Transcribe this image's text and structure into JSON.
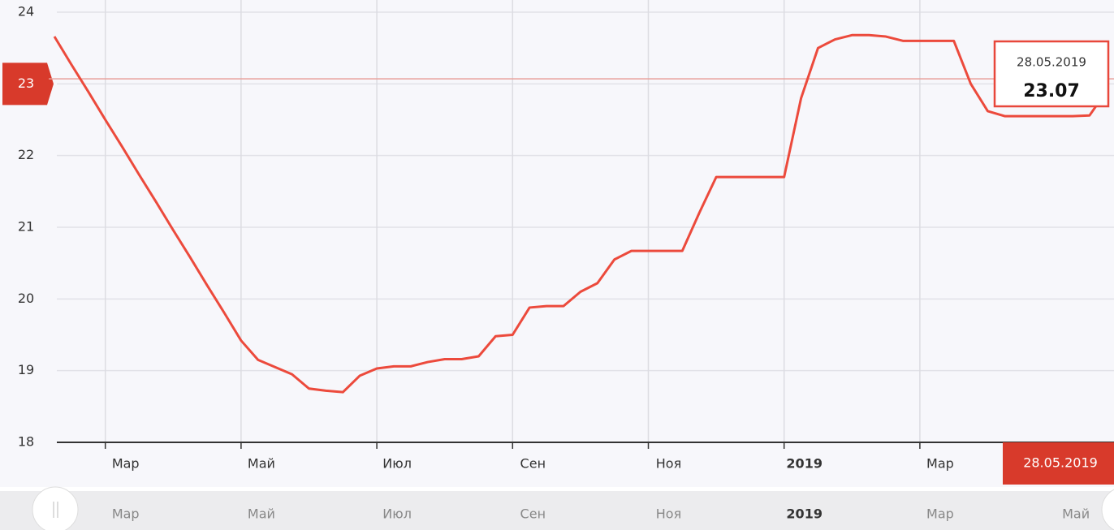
{
  "chart_data": {
    "type": "line",
    "categories": [
      null,
      null,
      null,
      "Мар",
      null,
      null,
      null,
      null,
      null,
      null,
      null,
      "Май",
      null,
      null,
      null,
      null,
      null,
      null,
      null,
      "Июл",
      null,
      null,
      null,
      null,
      null,
      null,
      null,
      "Сен",
      null,
      null,
      null,
      null,
      null,
      null,
      null,
      "Ноя",
      null,
      null,
      null,
      null,
      null,
      null,
      null,
      "2019",
      null,
      null,
      null,
      null,
      null,
      null,
      null,
      "Мар",
      null,
      null,
      null,
      null,
      null,
      null,
      null,
      null,
      null,
      null,
      null
    ],
    "series": [
      {
        "color": "#ec4a3c",
        "values": [
          23.66,
          23.27,
          22.89,
          22.5,
          22.12,
          21.73,
          21.35,
          20.96,
          20.58,
          20.19,
          19.81,
          19.42,
          19.15,
          19.05,
          18.95,
          18.75,
          18.72,
          18.7,
          18.93,
          19.03,
          19.06,
          19.06,
          19.12,
          19.16,
          19.16,
          19.2,
          19.48,
          19.5,
          19.88,
          19.9,
          19.9,
          20.1,
          20.22,
          20.55,
          20.67,
          20.67,
          20.67,
          20.67,
          21.2,
          21.7,
          21.7,
          21.7,
          21.7,
          21.7,
          22.8,
          23.5,
          23.62,
          23.68,
          23.68,
          23.66,
          23.6,
          23.6,
          23.6,
          23.6,
          23.0,
          22.62,
          22.55,
          22.55,
          22.55,
          22.55,
          22.55,
          22.56,
          22.9
        ]
      }
    ],
    "ylim": [
      18,
      24
    ],
    "yticks": [
      18,
      19,
      20,
      21,
      22,
      23,
      24
    ],
    "grid": true,
    "tooltip": {
      "date": "28.05.2019",
      "value": 23.07
    },
    "navigator": {
      "labels": [
        "Мар",
        "Май",
        "Июл",
        "Сен",
        "Ноя",
        "2019",
        "Мар",
        "Май"
      ]
    }
  }
}
